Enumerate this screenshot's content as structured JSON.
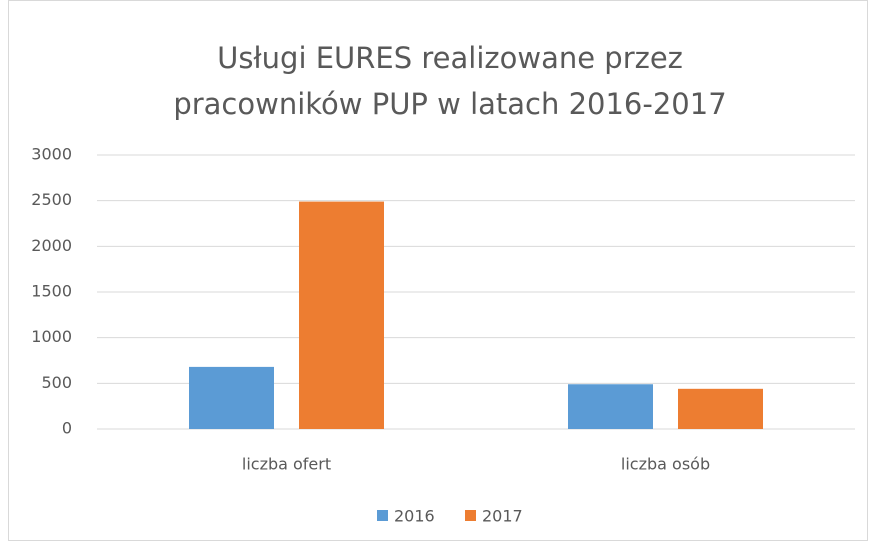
{
  "chart_data": {
    "type": "bar",
    "title": [
      "Usługi EURES realizowane przez",
      "pracowników PUP w latach 2016-2017"
    ],
    "categories": [
      "liczba ofert",
      "liczba osób"
    ],
    "series": [
      {
        "name": "2016",
        "color": "#5b9bd5",
        "values": [
          680,
          490
        ]
      },
      {
        "name": "2017",
        "color": "#ed7d31",
        "values": [
          2490,
          440
        ]
      }
    ],
    "ylim": [
      0,
      3000
    ],
    "yticks": [
      0,
      500,
      1000,
      1500,
      2000,
      2500,
      3000
    ],
    "grid": true,
    "legend": "bottom"
  }
}
